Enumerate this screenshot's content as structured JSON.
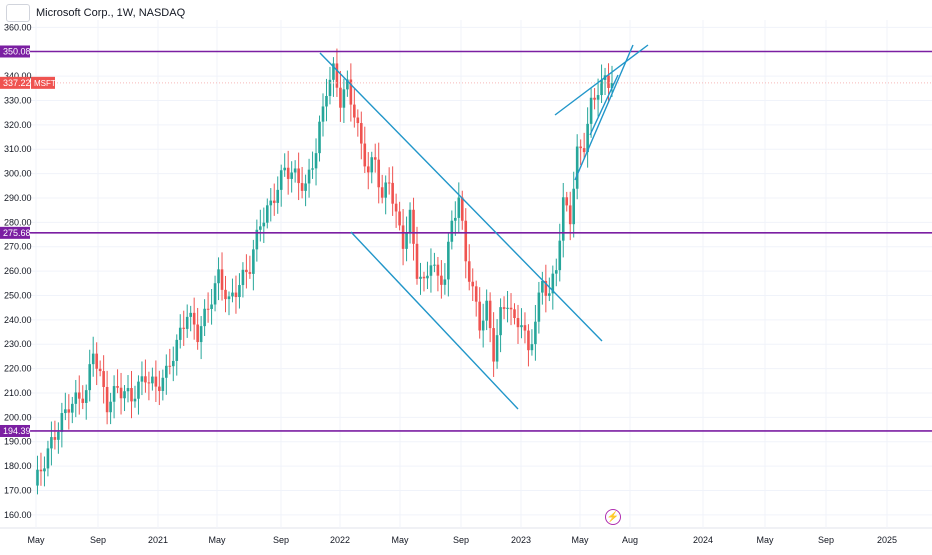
{
  "header": {
    "title": "Microsoft Corp., 1W, NASDAQ"
  },
  "price_scale": {
    "ticks": [
      "360.00",
      "340.00",
      "330.00",
      "320.00",
      "310.00",
      "300.00",
      "290.00",
      "280.00",
      "270.00",
      "260.00",
      "250.00",
      "240.00",
      "230.00",
      "220.00",
      "210.00",
      "200.00",
      "190.00",
      "180.00",
      "170.00",
      "160.00"
    ]
  },
  "time_axis": {
    "labels": [
      "May",
      "Sep",
      "2021",
      "May",
      "Sep",
      "2022",
      "May",
      "Sep",
      "2023",
      "May",
      "Aug",
      "2024",
      "May",
      "Sep",
      "2025"
    ]
  },
  "levels": [
    {
      "label": "350.08",
      "price": 350.08
    },
    {
      "label": "275.68",
      "price": 275.68
    },
    {
      "label": "194.39",
      "price": 194.39
    }
  ],
  "current_price": {
    "label": "337.22",
    "price": 337.22,
    "symbol": "MSFT"
  },
  "colors": {
    "up": "#26a69a",
    "down": "#ef5350",
    "level": "#7b1fa2",
    "trend": "#2196c9",
    "grid": "#f0f3fa",
    "axis_text": "#131722"
  },
  "chart_data": {
    "type": "candlestick",
    "title": "Microsoft Corp., 1W, NASDAQ",
    "interval": "1W",
    "ylim": [
      155,
      363
    ],
    "xlabel": "",
    "ylabel": "",
    "grid": true,
    "horizontal_levels": [
      350.08,
      275.68,
      194.39
    ],
    "last_price": 337.22,
    "anchors": [
      {
        "i": 0,
        "price": 172
      },
      {
        "i": 3,
        "price": 182
      },
      {
        "i": 6,
        "price": 193
      },
      {
        "i": 10,
        "price": 205
      },
      {
        "i": 15,
        "price": 210
      },
      {
        "i": 17,
        "price": 228
      },
      {
        "i": 21,
        "price": 205
      },
      {
        "i": 24,
        "price": 212
      },
      {
        "i": 28,
        "price": 208
      },
      {
        "i": 32,
        "price": 217
      },
      {
        "i": 35,
        "price": 212
      },
      {
        "i": 38,
        "price": 218
      },
      {
        "i": 41,
        "price": 230
      },
      {
        "i": 44,
        "price": 243
      },
      {
        "i": 47,
        "price": 234
      },
      {
        "i": 50,
        "price": 245
      },
      {
        "i": 53,
        "price": 258
      },
      {
        "i": 56,
        "price": 247
      },
      {
        "i": 59,
        "price": 255
      },
      {
        "i": 62,
        "price": 262
      },
      {
        "i": 65,
        "price": 280
      },
      {
        "i": 68,
        "price": 287
      },
      {
        "i": 72,
        "price": 302
      },
      {
        "i": 75,
        "price": 299
      },
      {
        "i": 78,
        "price": 294
      },
      {
        "i": 81,
        "price": 310
      },
      {
        "i": 84,
        "price": 335
      },
      {
        "i": 86,
        "price": 342
      },
      {
        "i": 88,
        "price": 330
      },
      {
        "i": 90,
        "price": 336
      },
      {
        "i": 92,
        "price": 325
      },
      {
        "i": 94,
        "price": 311
      },
      {
        "i": 96,
        "price": 301
      },
      {
        "i": 98,
        "price": 306
      },
      {
        "i": 100,
        "price": 289
      },
      {
        "i": 102,
        "price": 298
      },
      {
        "i": 104,
        "price": 282
      },
      {
        "i": 106,
        "price": 272
      },
      {
        "i": 108,
        "price": 282
      },
      {
        "i": 110,
        "price": 260
      },
      {
        "i": 112,
        "price": 254
      },
      {
        "i": 114,
        "price": 265
      },
      {
        "i": 116,
        "price": 256
      },
      {
        "i": 118,
        "price": 258
      },
      {
        "i": 120,
        "price": 280
      },
      {
        "i": 122,
        "price": 290
      },
      {
        "i": 124,
        "price": 265
      },
      {
        "i": 126,
        "price": 252
      },
      {
        "i": 128,
        "price": 238
      },
      {
        "i": 130,
        "price": 245
      },
      {
        "i": 132,
        "price": 226
      },
      {
        "i": 134,
        "price": 242
      },
      {
        "i": 136,
        "price": 248
      },
      {
        "i": 138,
        "price": 238
      },
      {
        "i": 140,
        "price": 240
      },
      {
        "i": 142,
        "price": 226
      },
      {
        "i": 144,
        "price": 240
      },
      {
        "i": 146,
        "price": 256
      },
      {
        "i": 148,
        "price": 250
      },
      {
        "i": 150,
        "price": 262
      },
      {
        "i": 152,
        "price": 288
      },
      {
        "i": 154,
        "price": 282
      },
      {
        "i": 156,
        "price": 308
      },
      {
        "i": 158,
        "price": 312
      },
      {
        "i": 160,
        "price": 328
      },
      {
        "i": 162,
        "price": 335
      },
      {
        "i": 164,
        "price": 338
      },
      {
        "i": 166,
        "price": 337.22
      }
    ]
  }
}
